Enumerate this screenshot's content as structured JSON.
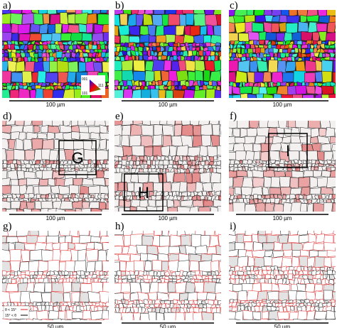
{
  "panels": [
    {
      "label": "a)",
      "scale": "100 µm",
      "style": "ipf"
    },
    {
      "label": "b)",
      "scale": "100 µm",
      "style": "ipf"
    },
    {
      "label": "c)",
      "scale": "100 µm",
      "style": "ipf"
    },
    {
      "label": "d)",
      "scale": "100 µm",
      "style": "gray",
      "box": "G"
    },
    {
      "label": "e)",
      "scale": "100 µm",
      "style": "gray",
      "box": "H"
    },
    {
      "label": "f)",
      "scale": "100 µm",
      "style": "gray",
      "box": "I"
    },
    {
      "label": "g)",
      "scale": "50 µm",
      "style": "lines"
    },
    {
      "label": "h)",
      "scale": "50 µm",
      "style": "lines"
    },
    {
      "label": "i)",
      "scale": "50 µm",
      "style": "lines"
    }
  ],
  "ipf_legend": [
    "001",
    "101",
    "111"
  ],
  "misorientation_legend": [
    "θ < 15°",
    "15° < θ"
  ]
}
